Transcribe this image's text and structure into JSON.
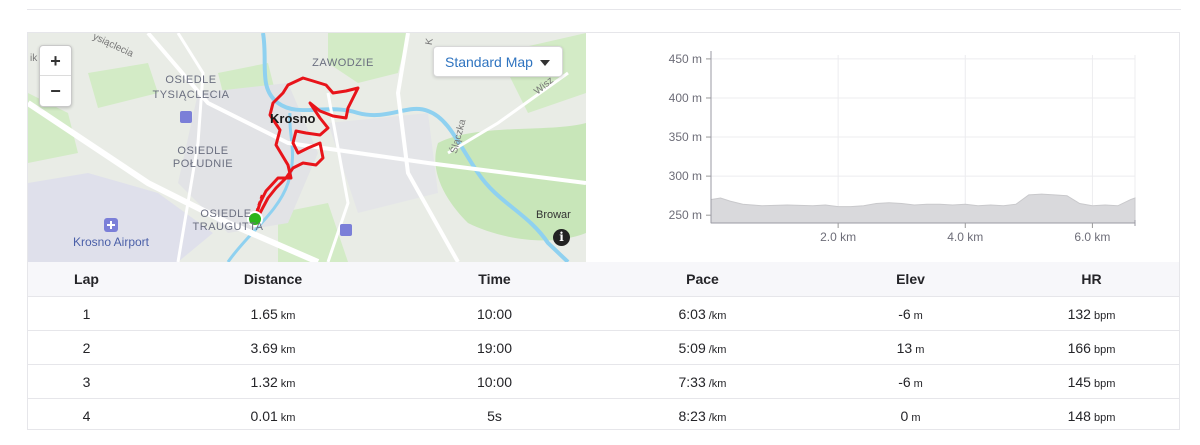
{
  "map": {
    "zoom_in": "+",
    "zoom_out": "−",
    "style_selector": "Standard Map",
    "info": "i",
    "labels": {
      "osiedle_tysiaclecia_1": "OSIEDLE",
      "osiedle_tysiaclecia_2": "TYSIĄCLECIA",
      "osiedle_poludnie_1": "OSIEDLE",
      "osiedle_poludnie_2": "POŁUDNIE",
      "osiedle_traugutta_1": "OSIEDLE",
      "osiedle_traugutta_2": "TRAUGUTTA",
      "zawodzie": "ZAWODZIE",
      "krosno": "Krosno",
      "krosno_airport": "Krosno Airport",
      "browar": "Browar",
      "street_slaczka": "Ślączka",
      "street_wisz": "Wisz",
      "street_tysiaclecia": "ysiąclecia",
      "street_k": "K",
      "street_ik": "ik"
    },
    "colors": {
      "route": "#e8141a",
      "start": "#2bb51b",
      "water": "#8fd1f0",
      "park": "#c8e6b9"
    }
  },
  "elevation_chart": {
    "chart_data": {
      "type": "area",
      "y_ticks": [
        "450 m",
        "400 m",
        "350 m",
        "300 m",
        "250 m"
      ],
      "y_tick_values": [
        450,
        400,
        350,
        300,
        250
      ],
      "x_ticks": [
        "2.0 km",
        "4.0 km",
        "6.0 km"
      ],
      "x_tick_values": [
        2.0,
        4.0,
        6.0
      ],
      "xlim": [
        0,
        6.67
      ],
      "ylim": [
        240,
        455
      ],
      "grid": true,
      "x": [
        0,
        0.15,
        0.3,
        0.5,
        0.8,
        1.2,
        1.6,
        1.8,
        2.0,
        2.2,
        2.4,
        2.6,
        2.8,
        3.0,
        3.2,
        3.4,
        3.6,
        3.8,
        4.0,
        4.2,
        4.4,
        4.6,
        4.8,
        5.0,
        5.2,
        5.4,
        5.6,
        5.8,
        6.0,
        6.2,
        6.4,
        6.6,
        6.67
      ],
      "values": [
        270,
        272,
        268,
        264,
        262,
        263,
        262,
        263,
        261,
        261,
        262,
        265,
        266,
        265,
        263,
        264,
        264,
        263,
        264,
        262,
        263,
        262,
        264,
        276,
        277,
        276,
        275,
        265,
        262,
        263,
        262,
        270,
        272
      ]
    }
  },
  "laps": {
    "headers": [
      "Lap",
      "Distance",
      "Time",
      "Pace",
      "Elev",
      "HR"
    ],
    "rows": [
      {
        "lap": "1",
        "distance": "1.65",
        "distance_unit": "km",
        "time": "10:00",
        "pace": "6:03",
        "pace_unit": "/km",
        "elev": "-6",
        "elev_unit": "m",
        "hr": "132",
        "hr_unit": "bpm"
      },
      {
        "lap": "2",
        "distance": "3.69",
        "distance_unit": "km",
        "time": "19:00",
        "pace": "5:09",
        "pace_unit": "/km",
        "elev": "13",
        "elev_unit": "m",
        "hr": "166",
        "hr_unit": "bpm"
      },
      {
        "lap": "3",
        "distance": "1.32",
        "distance_unit": "km",
        "time": "10:00",
        "pace": "7:33",
        "pace_unit": "/km",
        "elev": "-6",
        "elev_unit": "m",
        "hr": "145",
        "hr_unit": "bpm"
      },
      {
        "lap": "4",
        "distance": "0.01",
        "distance_unit": "km",
        "time": "5s",
        "pace": "8:23",
        "pace_unit": "/km",
        "elev": "0",
        "elev_unit": "m",
        "hr": "148",
        "hr_unit": "bpm"
      }
    ]
  }
}
